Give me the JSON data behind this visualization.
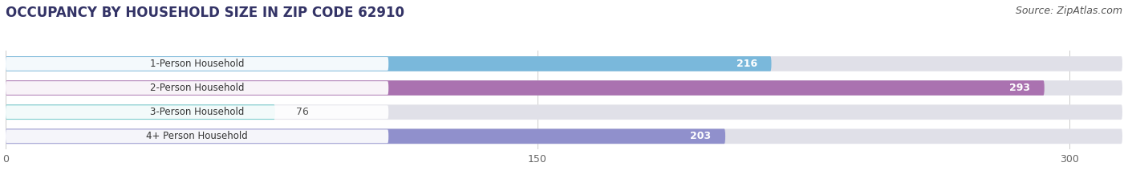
{
  "title": "OCCUPANCY BY HOUSEHOLD SIZE IN ZIP CODE 62910",
  "source": "Source: ZipAtlas.com",
  "categories": [
    "1-Person Household",
    "2-Person Household",
    "3-Person Household",
    "4+ Person Household"
  ],
  "values": [
    216,
    293,
    76,
    203
  ],
  "bar_colors": [
    "#7ab8db",
    "#aa72b0",
    "#63c4c4",
    "#9090cc"
  ],
  "xlim_max": 315,
  "xticks": [
    0,
    150,
    300
  ],
  "background_color": "#ffffff",
  "bar_bg_color": "#e0e0e8",
  "label_bg_color": "#f5f5f8",
  "title_fontsize": 12,
  "source_fontsize": 9,
  "bar_height": 0.62,
  "figsize": [
    14.06,
    2.33
  ]
}
